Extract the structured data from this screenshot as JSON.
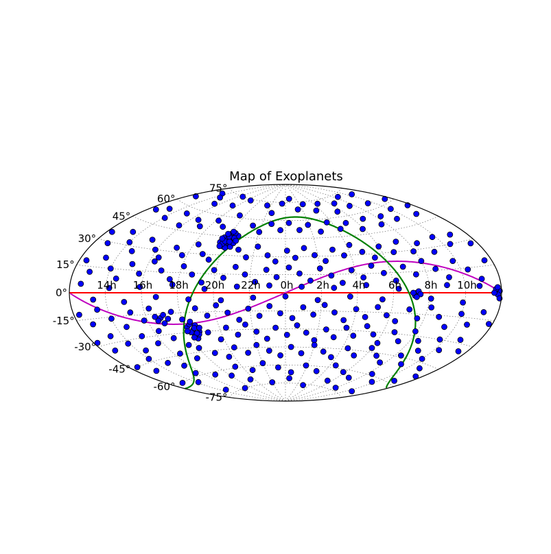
{
  "chart_data": {
    "type": "scatter",
    "projection": "aitoff",
    "title": "Map of Exoplanets",
    "xlabel": "",
    "ylabel": "",
    "grid": true,
    "x_tick_labels": [
      "14h",
      "16h",
      "18h",
      "20h",
      "22h",
      "0h",
      "2h",
      "4h",
      "6h",
      "8h",
      "10h"
    ],
    "x_tick_values_hours": [
      14,
      16,
      18,
      20,
      22,
      0,
      2,
      4,
      6,
      8,
      10
    ],
    "y_tick_labels": [
      "-75°",
      "-60°",
      "-45°",
      "-30°",
      "-15°",
      "0°",
      "15°",
      "30°",
      "45°",
      "60°",
      "75°"
    ],
    "y_tick_values_deg": [
      -75,
      -60,
      -45,
      -30,
      -15,
      0,
      15,
      30,
      45,
      60,
      75
    ],
    "lines": [
      {
        "role": "celestial-equator",
        "color": "#ff0000"
      },
      {
        "role": "ecliptic",
        "color": "#bf00bf"
      },
      {
        "role": "galactic-plane",
        "color": "#008000"
      }
    ],
    "point_color": "#0000ff",
    "point_edge_color": "#000000",
    "points": [
      [
        20.0,
        40
      ],
      [
        20.1,
        43
      ],
      [
        19.9,
        37
      ],
      [
        20.3,
        45
      ],
      [
        19.8,
        42
      ],
      [
        20.2,
        38
      ],
      [
        20.4,
        41
      ],
      [
        19.7,
        44
      ],
      [
        20.0,
        47
      ],
      [
        20.5,
        43
      ],
      [
        19.9,
        46
      ],
      [
        20.1,
        36
      ],
      [
        20.3,
        39
      ],
      [
        19.6,
        40
      ],
      [
        20.6,
        46
      ],
      [
        20.2,
        44
      ],
      [
        19.8,
        39
      ],
      [
        20.4,
        37
      ],
      [
        20.0,
        42
      ],
      [
        20.3,
        48
      ],
      [
        19.7,
        37
      ],
      [
        20.5,
        40
      ],
      [
        20.1,
        49
      ],
      [
        19.9,
        41
      ],
      [
        20.2,
        41
      ],
      [
        19.6,
        43
      ],
      [
        20.4,
        44
      ],
      [
        20.0,
        45
      ],
      [
        19.8,
        47
      ],
      [
        20.6,
        42
      ],
      [
        18.4,
        -28
      ],
      [
        18.2,
        -30
      ],
      [
        18.6,
        -25
      ],
      [
        18.3,
        -33
      ],
      [
        18.5,
        -27
      ],
      [
        18.1,
        -26
      ],
      [
        18.7,
        -30
      ],
      [
        18.4,
        -35
      ],
      [
        18.3,
        -24
      ],
      [
        18.6,
        -32
      ],
      [
        18.0,
        -29
      ],
      [
        18.5,
        -31
      ],
      [
        18.2,
        -34
      ],
      [
        18.8,
        -27
      ],
      [
        18.4,
        -22
      ],
      [
        16.8,
        -18
      ],
      [
        16.6,
        -20
      ],
      [
        17.0,
        -16
      ],
      [
        16.9,
        -22
      ],
      [
        17.2,
        -19
      ],
      [
        16.5,
        -17
      ],
      [
        7.3,
        0
      ],
      [
        7.2,
        -2
      ],
      [
        7.4,
        1
      ],
      [
        7.1,
        0
      ],
      [
        7.5,
        -1
      ],
      [
        7.3,
        -3
      ],
      [
        11.9,
        1
      ],
      [
        11.8,
        -1
      ],
      [
        11.7,
        2
      ],
      [
        11.9,
        -3
      ],
      [
        11.6,
        0
      ],
      [
        11.8,
        3
      ],
      [
        12.5,
        65
      ],
      [
        13.5,
        72
      ],
      [
        14.5,
        70
      ],
      [
        15.5,
        66
      ],
      [
        16.5,
        75
      ],
      [
        17.5,
        68
      ],
      [
        18.5,
        74
      ],
      [
        19.5,
        62
      ],
      [
        21.5,
        72
      ],
      [
        22.5,
        66
      ],
      [
        23.5,
        74
      ],
      [
        0.7,
        78
      ],
      [
        1.5,
        69
      ],
      [
        2.5,
        73
      ],
      [
        3.5,
        67
      ],
      [
        4.5,
        72
      ],
      [
        5.5,
        64
      ],
      [
        6.5,
        70
      ],
      [
        7.5,
        66
      ],
      [
        8.5,
        73
      ],
      [
        9.5,
        64
      ],
      [
        10.5,
        71
      ],
      [
        11.5,
        62
      ],
      [
        12.5,
        52
      ],
      [
        13.2,
        55
      ],
      [
        14.1,
        50
      ],
      [
        15.0,
        56
      ],
      [
        15.8,
        48
      ],
      [
        16.6,
        54
      ],
      [
        17.3,
        50
      ],
      [
        18.2,
        56
      ],
      [
        19.0,
        52
      ],
      [
        21.3,
        55
      ],
      [
        22.0,
        50
      ],
      [
        22.8,
        57
      ],
      [
        23.6,
        52
      ],
      [
        0.3,
        58
      ],
      [
        1.1,
        52
      ],
      [
        1.9,
        56
      ],
      [
        2.7,
        50
      ],
      [
        3.6,
        57
      ],
      [
        4.3,
        51
      ],
      [
        5.1,
        55
      ],
      [
        5.9,
        49
      ],
      [
        6.8,
        56
      ],
      [
        7.6,
        50
      ],
      [
        8.4,
        55
      ],
      [
        9.2,
        51
      ],
      [
        10.1,
        57
      ],
      [
        11.0,
        50
      ],
      [
        11.7,
        55
      ],
      [
        12.3,
        35
      ],
      [
        12.8,
        29
      ],
      [
        13.5,
        38
      ],
      [
        14.0,
        32
      ],
      [
        14.6,
        27
      ],
      [
        15.2,
        36
      ],
      [
        15.9,
        30
      ],
      [
        16.4,
        25
      ],
      [
        17.1,
        33
      ],
      [
        17.7,
        28
      ],
      [
        18.3,
        37
      ],
      [
        18.9,
        30
      ],
      [
        19.4,
        26
      ],
      [
        21.0,
        35
      ],
      [
        21.6,
        29
      ],
      [
        22.2,
        38
      ],
      [
        22.9,
        31
      ],
      [
        23.4,
        26
      ],
      [
        0.1,
        35
      ],
      [
        0.6,
        29
      ],
      [
        1.2,
        37
      ],
      [
        1.8,
        31
      ],
      [
        2.4,
        26
      ],
      [
        3.0,
        35
      ],
      [
        3.6,
        30
      ],
      [
        4.2,
        38
      ],
      [
        4.8,
        32
      ],
      [
        5.4,
        27
      ],
      [
        6.0,
        35
      ],
      [
        6.7,
        30
      ],
      [
        7.3,
        37
      ],
      [
        7.9,
        29
      ],
      [
        8.5,
        34
      ],
      [
        9.1,
        27
      ],
      [
        9.8,
        36
      ],
      [
        10.4,
        30
      ],
      [
        11.0,
        35
      ],
      [
        11.6,
        28
      ],
      [
        12.4,
        18
      ],
      [
        12.9,
        12
      ],
      [
        13.4,
        21
      ],
      [
        14.0,
        15
      ],
      [
        14.5,
        9
      ],
      [
        15.1,
        19
      ],
      [
        15.7,
        13
      ],
      [
        16.3,
        22
      ],
      [
        16.9,
        16
      ],
      [
        17.5,
        10
      ],
      [
        18.1,
        20
      ],
      [
        18.7,
        14
      ],
      [
        19.3,
        8
      ],
      [
        19.9,
        18
      ],
      [
        20.5,
        12
      ],
      [
        21.1,
        21
      ],
      [
        21.7,
        15
      ],
      [
        22.3,
        9
      ],
      [
        22.9,
        19
      ],
      [
        23.5,
        13
      ],
      [
        0.2,
        21
      ],
      [
        0.8,
        16
      ],
      [
        1.4,
        10
      ],
      [
        2.0,
        20
      ],
      [
        2.6,
        14
      ],
      [
        3.2,
        8
      ],
      [
        3.8,
        18
      ],
      [
        4.4,
        12
      ],
      [
        5.0,
        21
      ],
      [
        5.6,
        15
      ],
      [
        6.2,
        9
      ],
      [
        6.8,
        19
      ],
      [
        7.4,
        13
      ],
      [
        8.0,
        22
      ],
      [
        8.6,
        16
      ],
      [
        9.2,
        10
      ],
      [
        9.8,
        20
      ],
      [
        10.4,
        14
      ],
      [
        11.0,
        8
      ],
      [
        11.6,
        18
      ],
      [
        12.6,
        5
      ],
      [
        13.3,
        -4
      ],
      [
        14.2,
        3
      ],
      [
        15.0,
        -6
      ],
      [
        15.9,
        4
      ],
      [
        16.8,
        -3
      ],
      [
        17.7,
        6
      ],
      [
        18.6,
        -5
      ],
      [
        19.5,
        3
      ],
      [
        20.4,
        -6
      ],
      [
        21.3,
        5
      ],
      [
        22.2,
        -4
      ],
      [
        23.1,
        6
      ],
      [
        0.0,
        -3
      ],
      [
        0.9,
        5
      ],
      [
        1.8,
        -6
      ],
      [
        2.7,
        4
      ],
      [
        3.6,
        -3
      ],
      [
        4.5,
        6
      ],
      [
        5.4,
        -5
      ],
      [
        6.3,
        3
      ],
      [
        8.1,
        -4
      ],
      [
        9.0,
        5
      ],
      [
        9.9,
        -6
      ],
      [
        10.8,
        4
      ],
      [
        12.3,
        -12
      ],
      [
        12.8,
        -18
      ],
      [
        13.4,
        -10
      ],
      [
        14.0,
        -16
      ],
      [
        14.6,
        -22
      ],
      [
        15.2,
        -13
      ],
      [
        15.8,
        -19
      ],
      [
        16.3,
        -11
      ],
      [
        17.5,
        -14
      ],
      [
        18.0,
        -20
      ],
      [
        18.9,
        -12
      ],
      [
        19.5,
        -18
      ],
      [
        20.1,
        -10
      ],
      [
        20.7,
        -16
      ],
      [
        21.3,
        -22
      ],
      [
        21.9,
        -13
      ],
      [
        22.5,
        -19
      ],
      [
        23.1,
        -11
      ],
      [
        23.7,
        -17
      ],
      [
        0.4,
        -21
      ],
      [
        1.0,
        -12
      ],
      [
        1.6,
        -18
      ],
      [
        2.2,
        -10
      ],
      [
        2.8,
        -16
      ],
      [
        3.4,
        -22
      ],
      [
        4.0,
        -13
      ],
      [
        4.6,
        -19
      ],
      [
        5.2,
        -11
      ],
      [
        5.8,
        -17
      ],
      [
        6.4,
        -21
      ],
      [
        7.0,
        -12
      ],
      [
        7.6,
        -18
      ],
      [
        8.2,
        -10
      ],
      [
        8.8,
        -16
      ],
      [
        9.4,
        -22
      ],
      [
        10.0,
        -13
      ],
      [
        10.6,
        -19
      ],
      [
        11.2,
        -11
      ],
      [
        11.8,
        -17
      ],
      [
        12.2,
        -28
      ],
      [
        12.7,
        -34
      ],
      [
        13.3,
        -26
      ],
      [
        13.9,
        -32
      ],
      [
        14.5,
        -38
      ],
      [
        15.1,
        -29
      ],
      [
        15.7,
        -35
      ],
      [
        16.3,
        -27
      ],
      [
        16.9,
        -33
      ],
      [
        17.5,
        -39
      ],
      [
        19.2,
        -31
      ],
      [
        19.8,
        -37
      ],
      [
        20.4,
        -28
      ],
      [
        21.0,
        -34
      ],
      [
        21.6,
        -26
      ],
      [
        22.2,
        -32
      ],
      [
        22.8,
        -38
      ],
      [
        23.4,
        -29
      ],
      [
        0.1,
        -35
      ],
      [
        0.7,
        -27
      ],
      [
        1.3,
        -33
      ],
      [
        1.9,
        -39
      ],
      [
        2.5,
        -30
      ],
      [
        3.1,
        -36
      ],
      [
        3.7,
        -28
      ],
      [
        4.3,
        -34
      ],
      [
        4.9,
        -26
      ],
      [
        5.5,
        -32
      ],
      [
        6.1,
        -38
      ],
      [
        6.7,
        -29
      ],
      [
        7.3,
        -35
      ],
      [
        7.9,
        -27
      ],
      [
        8.5,
        -33
      ],
      [
        9.1,
        -39
      ],
      [
        9.7,
        -30
      ],
      [
        10.3,
        -36
      ],
      [
        10.9,
        -28
      ],
      [
        11.5,
        -34
      ],
      [
        12.5,
        -45
      ],
      [
        13.2,
        -50
      ],
      [
        14.0,
        -43
      ],
      [
        14.8,
        -48
      ],
      [
        15.6,
        -52
      ],
      [
        16.4,
        -44
      ],
      [
        17.2,
        -49
      ],
      [
        18.0,
        -42
      ],
      [
        18.8,
        -47
      ],
      [
        19.6,
        -51
      ],
      [
        20.4,
        -44
      ],
      [
        21.2,
        -49
      ],
      [
        22.0,
        -43
      ],
      [
        22.8,
        -48
      ],
      [
        23.6,
        -52
      ],
      [
        0.4,
        -45
      ],
      [
        1.2,
        -50
      ],
      [
        2.0,
        -43
      ],
      [
        2.8,
        -48
      ],
      [
        3.6,
        -52
      ],
      [
        4.4,
        -44
      ],
      [
        5.2,
        -49
      ],
      [
        6.0,
        -42
      ],
      [
        6.8,
        -47
      ],
      [
        7.6,
        -51
      ],
      [
        8.4,
        -44
      ],
      [
        9.2,
        -49
      ],
      [
        10.0,
        -43
      ],
      [
        10.8,
        -48
      ],
      [
        11.6,
        -52
      ],
      [
        13.0,
        -60
      ],
      [
        14.2,
        -63
      ],
      [
        15.5,
        -58
      ],
      [
        16.8,
        -62
      ],
      [
        18.1,
        -65
      ],
      [
        19.4,
        -59
      ],
      [
        20.7,
        -63
      ],
      [
        22.0,
        -58
      ],
      [
        23.3,
        -62
      ],
      [
        0.6,
        -66
      ],
      [
        1.9,
        -60
      ],
      [
        3.2,
        -64
      ],
      [
        4.5,
        -58
      ],
      [
        5.8,
        -62
      ],
      [
        7.1,
        -65
      ],
      [
        8.4,
        -59
      ],
      [
        9.7,
        -63
      ],
      [
        11.0,
        -58
      ],
      [
        14.5,
        -72
      ],
      [
        17.0,
        -75
      ],
      [
        19.5,
        -70
      ],
      [
        22.0,
        -74
      ],
      [
        0.5,
        -71
      ],
      [
        3.0,
        -76
      ],
      [
        5.5,
        -70
      ],
      [
        8.0,
        -73
      ],
      [
        10.5,
        -71
      ]
    ]
  }
}
